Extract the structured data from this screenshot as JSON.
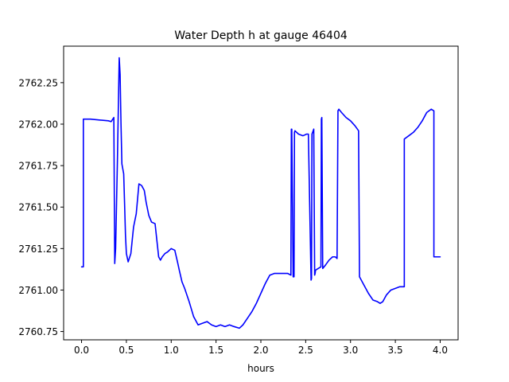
{
  "chart_data": {
    "type": "line",
    "title": "Water Depth h at gauge 46404",
    "xlabel": "hours",
    "ylabel": "",
    "xlim": [
      -0.2,
      4.2
    ],
    "ylim": [
      2760.7,
      2762.47
    ],
    "xticks": [
      0.0,
      0.5,
      1.0,
      1.5,
      2.0,
      2.5,
      3.0,
      3.5,
      4.0
    ],
    "xtick_labels": [
      "0.0",
      "0.5",
      "1.0",
      "1.5",
      "2.0",
      "2.5",
      "3.0",
      "3.5",
      "4.0"
    ],
    "yticks": [
      2760.75,
      2761.0,
      2761.25,
      2761.5,
      2761.75,
      2762.0,
      2762.25
    ],
    "ytick_labels": [
      "2760.75",
      "2761.00",
      "2761.25",
      "2761.50",
      "2761.75",
      "2762.00",
      "2762.25"
    ],
    "grid": false,
    "series": [
      {
        "color": "#0000ff",
        "x": [
          0.0,
          0.02,
          0.02,
          0.1,
          0.2,
          0.3,
          0.33,
          0.36,
          0.37,
          0.37,
          0.38,
          0.4,
          0.42,
          0.43,
          0.44,
          0.45,
          0.46,
          0.47,
          0.48,
          0.49,
          0.5,
          0.52,
          0.55,
          0.58,
          0.61,
          0.64,
          0.67,
          0.7,
          0.72,
          0.75,
          0.78,
          0.82,
          0.86,
          0.88,
          0.9,
          0.93,
          0.96,
          1.0,
          1.04,
          1.07,
          1.09,
          1.12,
          1.15,
          1.2,
          1.25,
          1.3,
          1.35,
          1.4,
          1.45,
          1.5,
          1.55,
          1.6,
          1.65,
          1.7,
          1.76,
          1.8,
          1.85,
          1.9,
          1.95,
          2.0,
          2.05,
          2.1,
          2.15,
          2.2,
          2.25,
          2.3,
          2.335,
          2.34,
          2.345,
          2.36,
          2.37,
          2.375,
          2.38,
          2.42,
          2.47,
          2.51,
          2.53,
          2.56,
          2.565,
          2.57,
          2.59,
          2.6,
          2.605,
          2.61,
          2.64,
          2.67,
          2.675,
          2.68,
          2.69,
          2.72,
          2.76,
          2.8,
          2.83,
          2.85,
          2.86,
          2.87,
          2.9,
          2.95,
          3.0,
          3.05,
          3.09,
          3.1,
          3.1,
          3.15,
          3.2,
          3.25,
          3.3,
          3.33,
          3.36,
          3.4,
          3.45,
          3.5,
          3.55,
          3.6,
          3.6,
          3.65,
          3.7,
          3.75,
          3.8,
          3.85,
          3.9,
          3.93,
          3.93,
          3.96,
          4.0
        ],
        "y": [
          2761.14,
          2761.14,
          2762.03,
          2762.03,
          2762.025,
          2762.02,
          2762.015,
          2762.04,
          2761.17,
          2761.16,
          2761.25,
          2761.78,
          2762.4,
          2762.3,
          2762.0,
          2761.76,
          2761.73,
          2761.7,
          2761.52,
          2761.33,
          2761.22,
          2761.17,
          2761.22,
          2761.38,
          2761.46,
          2761.64,
          2761.63,
          2761.6,
          2761.53,
          2761.45,
          2761.41,
          2761.4,
          2761.2,
          2761.18,
          2761.2,
          2761.22,
          2761.23,
          2761.25,
          2761.24,
          2761.17,
          2761.12,
          2761.05,
          2761.01,
          2760.93,
          2760.84,
          2760.79,
          2760.8,
          2760.81,
          2760.79,
          2760.78,
          2760.79,
          2760.78,
          2760.79,
          2760.78,
          2760.77,
          2760.79,
          2760.83,
          2760.87,
          2760.92,
          2760.98,
          2761.04,
          2761.09,
          2761.1,
          2761.1,
          2761.1,
          2761.1,
          2761.09,
          2761.97,
          2761.97,
          2761.08,
          2761.08,
          2761.95,
          2761.96,
          2761.94,
          2761.93,
          2761.94,
          2761.94,
          2761.06,
          2761.07,
          2761.94,
          2761.97,
          2761.09,
          2761.1,
          2761.12,
          2761.13,
          2761.14,
          2762.03,
          2762.04,
          2761.13,
          2761.15,
          2761.18,
          2761.2,
          2761.2,
          2761.19,
          2762.08,
          2762.09,
          2762.07,
          2762.04,
          2762.02,
          2761.99,
          2761.96,
          2761.09,
          2761.08,
          2761.03,
          2760.98,
          2760.94,
          2760.93,
          2760.92,
          2760.93,
          2760.97,
          2761.0,
          2761.01,
          2761.02,
          2761.02,
          2761.91,
          2761.93,
          2761.95,
          2761.98,
          2762.02,
          2762.07,
          2762.09,
          2762.08,
          2761.2,
          2761.2,
          2761.2
        ]
      }
    ]
  }
}
